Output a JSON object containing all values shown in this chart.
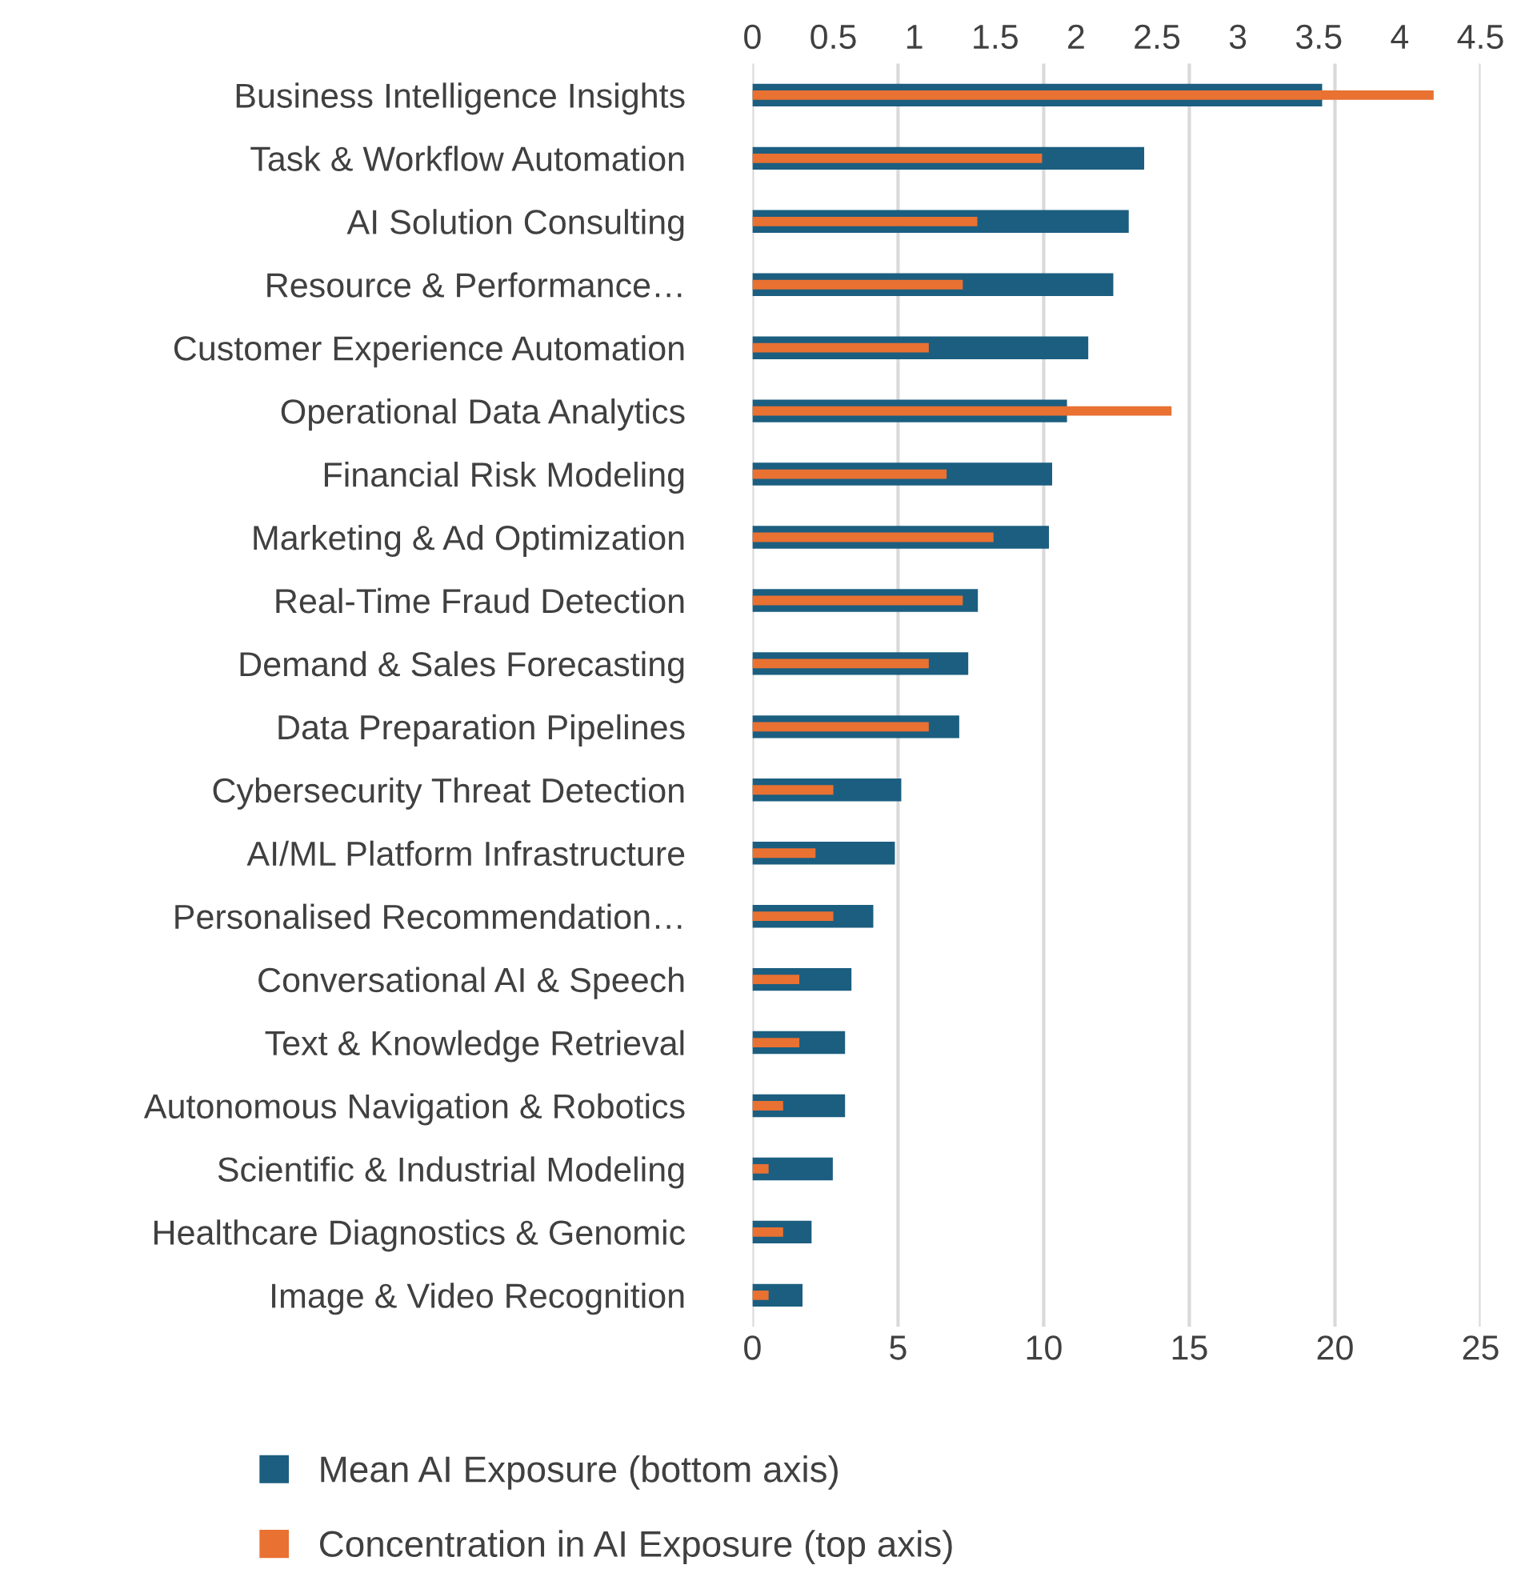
{
  "chart_data": {
    "type": "bar",
    "orientation": "horizontal",
    "categories": [
      "Business Intelligence Insights",
      "Task & Workflow Automation",
      "AI Solution Consulting",
      "Resource & Performance…",
      "Customer Experience Automation",
      "Operational Data Analytics",
      "Financial Risk Modeling",
      "Marketing & Ad Optimization",
      "Real-Time Fraud Detection",
      "Demand & Sales Forecasting",
      "Data Preparation Pipelines",
      "Cybersecurity Threat Detection",
      "AI/ML Platform Infrastructure",
      "Personalised Recommendation…",
      "Conversational AI & Speech",
      "Text & Knowledge Retrieval",
      "Autonomous Navigation & Robotics",
      "Scientific & Industrial Modeling",
      "Healthcare Diagnostics & Genomic",
      "Image & Video Recognition"
    ],
    "series": [
      {
        "name": "Mean AI Exposure (bottom axis)",
        "color": "#1b5e80",
        "values": [
          19.56,
          13.45,
          12.92,
          12.39,
          11.53,
          10.8,
          10.29,
          10.18,
          7.74,
          7.41,
          7.1,
          5.11,
          4.89,
          4.15,
          3.4,
          3.18,
          3.18,
          2.76,
          2.03,
          1.72
        ]
      },
      {
        "name": "Concentration in AI Exposure (top axis)",
        "color": "#e97132",
        "axis": "x2",
        "values": [
          4.21,
          1.79,
          1.39,
          1.3,
          1.09,
          2.59,
          1.2,
          1.49,
          1.3,
          1.09,
          1.09,
          0.5,
          0.39,
          0.5,
          0.29,
          0.29,
          0.19,
          0.1,
          0.19,
          0.1
        ]
      }
    ],
    "xlim": [
      0,
      25
    ],
    "xticks": [
      0,
      5,
      10,
      15,
      20,
      25
    ],
    "x2lim": [
      0,
      4.5
    ],
    "x2ticks": [
      0,
      0.5,
      1,
      1.5,
      2,
      2.5,
      3,
      3.5,
      4,
      4.5
    ],
    "grid": "x",
    "legend": "bottom"
  }
}
